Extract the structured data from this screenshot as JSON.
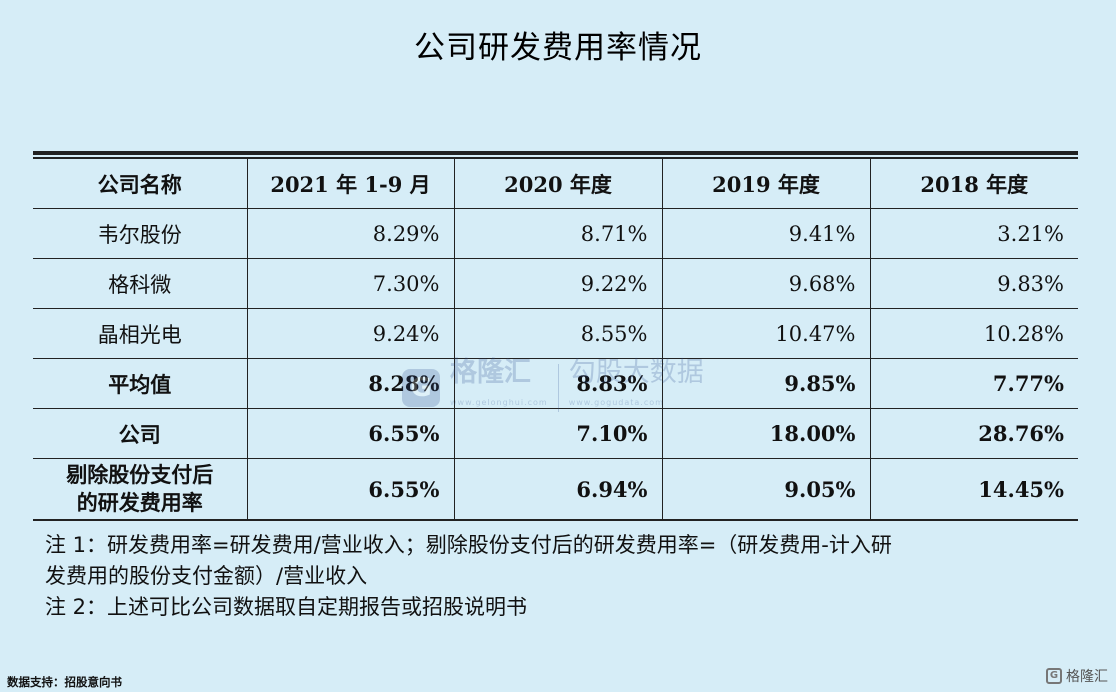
{
  "title": "公司研发费用率情况",
  "table": {
    "headers": [
      "公司名称",
      "2021 年 1-9 月",
      "2020 年度",
      "2019 年度",
      "2018 年度"
    ],
    "rows": [
      {
        "name": "韦尔股份",
        "values": [
          "8.29%",
          "8.71%",
          "9.41%",
          "3.21%"
        ]
      },
      {
        "name": "格科微",
        "values": [
          "7.30%",
          "9.22%",
          "9.68%",
          "9.83%"
        ]
      },
      {
        "name": "晶相光电",
        "values": [
          "9.24%",
          "8.55%",
          "10.47%",
          "10.28%"
        ]
      },
      {
        "name": "平均值",
        "values": [
          "8.28%",
          "8.83%",
          "9.85%",
          "7.77%"
        ]
      },
      {
        "name": "公司",
        "values": [
          "6.55%",
          "7.10%",
          "18.00%",
          "28.76%"
        ]
      },
      {
        "name_line1": "剔除股份支付后",
        "name_line2": "的研发费用率",
        "values": [
          "6.55%",
          "6.94%",
          "9.05%",
          "14.45%"
        ]
      }
    ]
  },
  "notes": {
    "note1_line1": "注 1：研发费用率=研发费用/营业收入；剔除股份支付后的研发费用率=（研发费用-计入研",
    "note1_line2": "发费用的股份支付金额）/营业收入",
    "note2": "注 2：上述可比公司数据取自定期报告或招股说明书"
  },
  "footer": {
    "source": "数据支持：招股意向书",
    "brand": "格隆汇"
  },
  "watermark": {
    "brand1": "格隆汇",
    "brand1_url": "www.gelonghui.com",
    "brand2": "勾股大数据",
    "brand2_url": "www.gogudata.com"
  },
  "colors": {
    "background": "#d6edf7",
    "text": "#111111",
    "watermark": "#2b4b8c"
  }
}
